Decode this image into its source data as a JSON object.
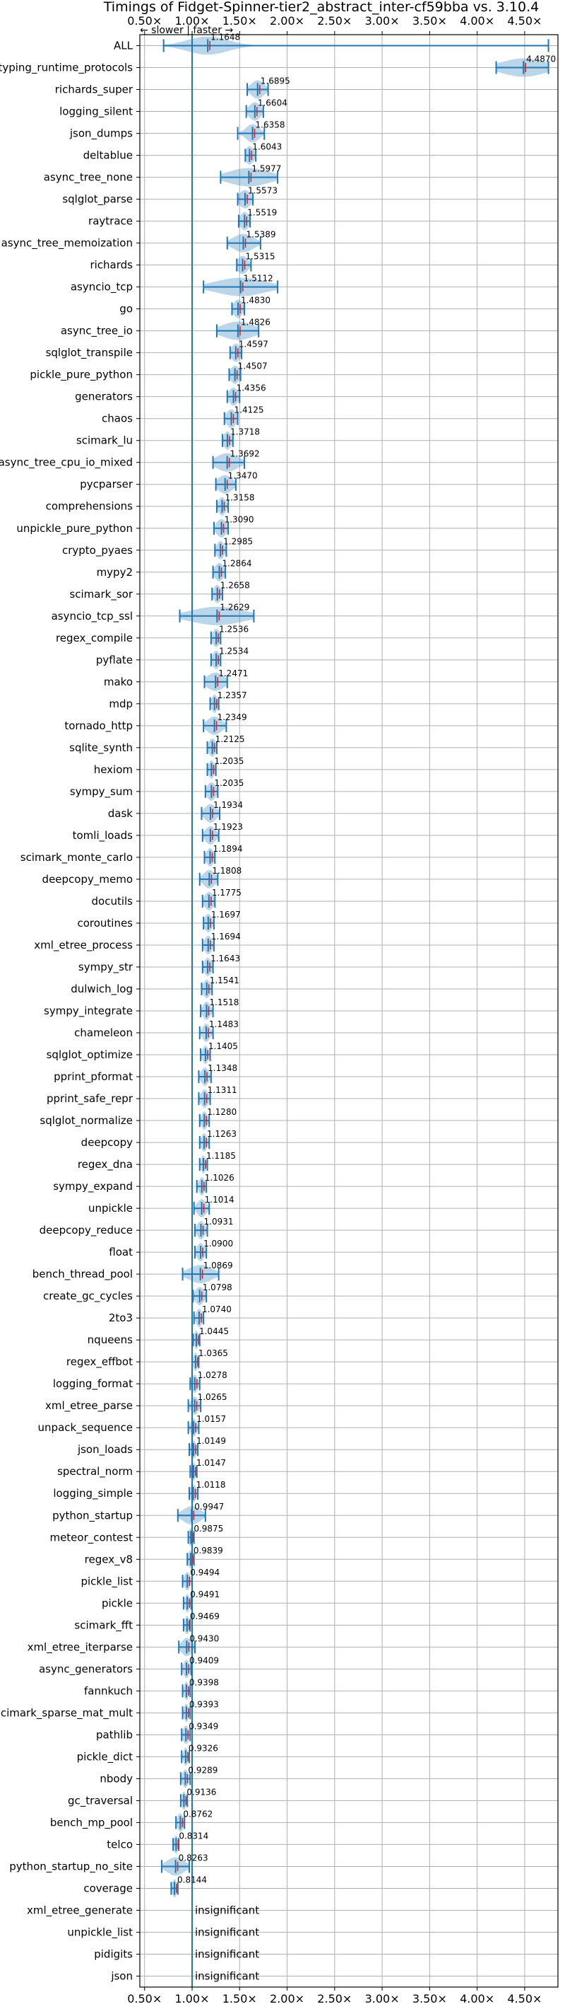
{
  "chart_data": {
    "type": "violin",
    "title": "Timings of Fidget-Spinner-tier2_abstract_inter-cf59bba vs. 3.10.4",
    "subtitle": "← slower | faster →",
    "x_ticks": [
      "0.50×",
      "1.00×",
      "1.50×",
      "2.00×",
      "2.50×",
      "3.00×",
      "3.50×",
      "4.00×",
      "4.50×"
    ],
    "x_tick_values": [
      0.5,
      1.0,
      1.5,
      2.0,
      2.5,
      3.0,
      3.5,
      4.0,
      4.5
    ],
    "xlim": [
      0.45,
      4.85
    ],
    "baseline": 1.0,
    "grid": true,
    "insignificant_text": "insignificant",
    "colors": {
      "violin": "#1f77b4",
      "median": "#d62728"
    },
    "benchmarks": [
      {
        "name": "ALL",
        "value": 1.1648,
        "label": "1.1648",
        "lo": 0.7,
        "hi": 4.75,
        "w": 0.28
      },
      {
        "name": "typing_runtime_protocols",
        "value": 4.487,
        "label": "4.4870",
        "lo": 4.2,
        "hi": 4.75,
        "w": 0.3
      },
      {
        "name": "richards_super",
        "value": 1.6895,
        "label": "1.6895",
        "lo": 1.58,
        "hi": 1.8,
        "w": 0.09
      },
      {
        "name": "logging_silent",
        "value": 1.6604,
        "label": "1.6604",
        "lo": 1.57,
        "hi": 1.75,
        "w": 0.08
      },
      {
        "name": "json_dumps",
        "value": 1.6358,
        "label": "1.6358",
        "lo": 1.48,
        "hi": 1.76,
        "w": 0.09
      },
      {
        "name": "deltablue",
        "value": 1.6043,
        "label": "1.6043",
        "lo": 1.56,
        "hi": 1.67,
        "w": 0.06
      },
      {
        "name": "async_tree_none",
        "value": 1.5977,
        "label": "1.5977",
        "lo": 1.3,
        "hi": 1.9,
        "w": 0.28
      },
      {
        "name": "sqlglot_parse",
        "value": 1.5573,
        "label": "1.5573",
        "lo": 1.48,
        "hi": 1.64,
        "w": 0.08
      },
      {
        "name": "raytrace",
        "value": 1.5519,
        "label": "1.5519",
        "lo": 1.49,
        "hi": 1.61,
        "w": 0.06
      },
      {
        "name": "async_tree_memoization",
        "value": 1.5389,
        "label": "1.5389",
        "lo": 1.37,
        "hi": 1.72,
        "w": 0.14
      },
      {
        "name": "richards",
        "value": 1.5315,
        "label": "1.5315",
        "lo": 1.47,
        "hi": 1.62,
        "w": 0.07
      },
      {
        "name": "asyncio_tcp",
        "value": 1.5112,
        "label": "1.5112",
        "lo": 1.12,
        "hi": 1.9,
        "w": 0.34
      },
      {
        "name": "go",
        "value": 1.483,
        "label": "1.4830",
        "lo": 1.42,
        "hi": 1.55,
        "w": 0.06
      },
      {
        "name": "async_tree_io",
        "value": 1.4826,
        "label": "1.4826",
        "lo": 1.26,
        "hi": 1.7,
        "w": 0.22
      },
      {
        "name": "sqlglot_transpile",
        "value": 1.4597,
        "label": "1.4597",
        "lo": 1.4,
        "hi": 1.52,
        "w": 0.06
      },
      {
        "name": "pickle_pure_python",
        "value": 1.4507,
        "label": "1.4507",
        "lo": 1.39,
        "hi": 1.51,
        "w": 0.06
      },
      {
        "name": "generators",
        "value": 1.4356,
        "label": "1.4356",
        "lo": 1.37,
        "hi": 1.5,
        "w": 0.06
      },
      {
        "name": "chaos",
        "value": 1.4125,
        "label": "1.4125",
        "lo": 1.34,
        "hi": 1.48,
        "w": 0.07
      },
      {
        "name": "scimark_lu",
        "value": 1.3718,
        "label": "1.3718",
        "lo": 1.32,
        "hi": 1.43,
        "w": 0.05
      },
      {
        "name": "async_tree_cpu_io_mixed",
        "value": 1.3692,
        "label": "1.3692",
        "lo": 1.22,
        "hi": 1.55,
        "w": 0.15
      },
      {
        "name": "pycparser",
        "value": 1.347,
        "label": "1.3470",
        "lo": 1.25,
        "hi": 1.46,
        "w": 0.1
      },
      {
        "name": "comprehensions",
        "value": 1.3158,
        "label": "1.3158",
        "lo": 1.26,
        "hi": 1.38,
        "w": 0.05
      },
      {
        "name": "unpickle_pure_python",
        "value": 1.309,
        "label": "1.3090",
        "lo": 1.23,
        "hi": 1.38,
        "w": 0.07
      },
      {
        "name": "crypto_pyaes",
        "value": 1.2985,
        "label": "1.2985",
        "lo": 1.24,
        "hi": 1.36,
        "w": 0.05
      },
      {
        "name": "mypy2",
        "value": 1.2864,
        "label": "1.2864",
        "lo": 1.22,
        "hi": 1.35,
        "w": 0.06
      },
      {
        "name": "scimark_sor",
        "value": 1.2658,
        "label": "1.2658",
        "lo": 1.21,
        "hi": 1.32,
        "w": 0.05
      },
      {
        "name": "asyncio_tcp_ssl",
        "value": 1.2629,
        "label": "1.2629",
        "lo": 0.87,
        "hi": 1.65,
        "w": 0.36
      },
      {
        "name": "regex_compile",
        "value": 1.2536,
        "label": "1.2536",
        "lo": 1.2,
        "hi": 1.3,
        "w": 0.05
      },
      {
        "name": "pyflate",
        "value": 1.2534,
        "label": "1.2534",
        "lo": 1.2,
        "hi": 1.3,
        "w": 0.05
      },
      {
        "name": "mako",
        "value": 1.2471,
        "label": "1.2471",
        "lo": 1.13,
        "hi": 1.37,
        "w": 0.12
      },
      {
        "name": "mdp",
        "value": 1.2357,
        "label": "1.2357",
        "lo": 1.19,
        "hi": 1.28,
        "w": 0.04
      },
      {
        "name": "tornado_http",
        "value": 1.2349,
        "label": "1.2349",
        "lo": 1.12,
        "hi": 1.36,
        "w": 0.1
      },
      {
        "name": "sqlite_synth",
        "value": 1.2125,
        "label": "1.2125",
        "lo": 1.16,
        "hi": 1.26,
        "w": 0.05
      },
      {
        "name": "hexiom",
        "value": 1.2035,
        "label": "1.2035",
        "lo": 1.16,
        "hi": 1.25,
        "w": 0.04
      },
      {
        "name": "sympy_sum",
        "value": 1.2035,
        "label": "1.2035",
        "lo": 1.14,
        "hi": 1.27,
        "w": 0.06
      },
      {
        "name": "dask",
        "value": 1.1934,
        "label": "1.1934",
        "lo": 1.1,
        "hi": 1.29,
        "w": 0.08
      },
      {
        "name": "tomli_loads",
        "value": 1.1923,
        "label": "1.1923",
        "lo": 1.11,
        "hi": 1.28,
        "w": 0.07
      },
      {
        "name": "scimark_monte_carlo",
        "value": 1.1894,
        "label": "1.1894",
        "lo": 1.13,
        "hi": 1.24,
        "w": 0.05
      },
      {
        "name": "deepcopy_memo",
        "value": 1.1808,
        "label": "1.1808",
        "lo": 1.08,
        "hi": 1.27,
        "w": 0.08
      },
      {
        "name": "docutils",
        "value": 1.1775,
        "label": "1.1775",
        "lo": 1.11,
        "hi": 1.24,
        "w": 0.06
      },
      {
        "name": "coroutines",
        "value": 1.1697,
        "label": "1.1697",
        "lo": 1.12,
        "hi": 1.23,
        "w": 0.05
      },
      {
        "name": "xml_etree_process",
        "value": 1.1694,
        "label": "1.1694",
        "lo": 1.11,
        "hi": 1.23,
        "w": 0.05
      },
      {
        "name": "sympy_str",
        "value": 1.1643,
        "label": "1.1643",
        "lo": 1.11,
        "hi": 1.22,
        "w": 0.05
      },
      {
        "name": "dulwich_log",
        "value": 1.1541,
        "label": "1.1541",
        "lo": 1.1,
        "hi": 1.21,
        "w": 0.05
      },
      {
        "name": "sympy_integrate",
        "value": 1.1518,
        "label": "1.1518",
        "lo": 1.09,
        "hi": 1.22,
        "w": 0.05
      },
      {
        "name": "chameleon",
        "value": 1.1483,
        "label": "1.1483",
        "lo": 1.08,
        "hi": 1.22,
        "w": 0.05
      },
      {
        "name": "sqlglot_optimize",
        "value": 1.1405,
        "label": "1.1405",
        "lo": 1.09,
        "hi": 1.19,
        "w": 0.04
      },
      {
        "name": "pprint_pformat",
        "value": 1.1348,
        "label": "1.1348",
        "lo": 1.07,
        "hi": 1.2,
        "w": 0.05
      },
      {
        "name": "pprint_safe_repr",
        "value": 1.1311,
        "label": "1.1311",
        "lo": 1.07,
        "hi": 1.19,
        "w": 0.05
      },
      {
        "name": "sqlglot_normalize",
        "value": 1.128,
        "label": "1.1280",
        "lo": 1.08,
        "hi": 1.18,
        "w": 0.04
      },
      {
        "name": "deepcopy",
        "value": 1.1263,
        "label": "1.1263",
        "lo": 1.08,
        "hi": 1.18,
        "w": 0.04
      },
      {
        "name": "regex_dna",
        "value": 1.1185,
        "label": "1.1185",
        "lo": 1.08,
        "hi": 1.16,
        "w": 0.03
      },
      {
        "name": "sympy_expand",
        "value": 1.1026,
        "label": "1.1026",
        "lo": 1.05,
        "hi": 1.15,
        "w": 0.04
      },
      {
        "name": "unpickle",
        "value": 1.1014,
        "label": "1.1014",
        "lo": 1.02,
        "hi": 1.18,
        "w": 0.06
      },
      {
        "name": "deepcopy_reduce",
        "value": 1.0931,
        "label": "1.0931",
        "lo": 1.03,
        "hi": 1.16,
        "w": 0.05
      },
      {
        "name": "float",
        "value": 1.09,
        "label": "1.0900",
        "lo": 1.03,
        "hi": 1.15,
        "w": 0.05
      },
      {
        "name": "bench_thread_pool",
        "value": 1.0869,
        "label": "1.0869",
        "lo": 0.9,
        "hi": 1.28,
        "w": 0.16
      },
      {
        "name": "create_gc_cycles",
        "value": 1.0798,
        "label": "1.0798",
        "lo": 1.01,
        "hi": 1.15,
        "w": 0.06
      },
      {
        "name": "2to3",
        "value": 1.074,
        "label": "1.0740",
        "lo": 1.02,
        "hi": 1.12,
        "w": 0.04
      },
      {
        "name": "nqueens",
        "value": 1.0445,
        "label": "1.0445",
        "lo": 1.01,
        "hi": 1.08,
        "w": 0.03
      },
      {
        "name": "regex_effbot",
        "value": 1.0365,
        "label": "1.0365",
        "lo": 1.0,
        "hi": 1.07,
        "w": 0.03
      },
      {
        "name": "logging_format",
        "value": 1.0278,
        "label": "1.0278",
        "lo": 0.98,
        "hi": 1.08,
        "w": 0.04
      },
      {
        "name": "xml_etree_parse",
        "value": 1.0265,
        "label": "1.0265",
        "lo": 0.96,
        "hi": 1.09,
        "w": 0.05
      },
      {
        "name": "unpack_sequence",
        "value": 1.0157,
        "label": "1.0157",
        "lo": 0.96,
        "hi": 1.07,
        "w": 0.04
      },
      {
        "name": "json_loads",
        "value": 1.0149,
        "label": "1.0149",
        "lo": 0.97,
        "hi": 1.06,
        "w": 0.04
      },
      {
        "name": "spectral_norm",
        "value": 1.0147,
        "label": "1.0147",
        "lo": 0.98,
        "hi": 1.05,
        "w": 0.03
      },
      {
        "name": "logging_simple",
        "value": 1.0118,
        "label": "1.0118",
        "lo": 0.97,
        "hi": 1.06,
        "w": 0.04
      },
      {
        "name": "python_startup",
        "value": 0.9947,
        "label": "0.9947",
        "lo": 0.85,
        "hi": 1.14,
        "w": 0.12
      },
      {
        "name": "meteor_contest",
        "value": 0.9875,
        "label": "0.9875",
        "lo": 0.96,
        "hi": 1.02,
        "w": 0.03
      },
      {
        "name": "regex_v8",
        "value": 0.9839,
        "label": "0.9839",
        "lo": 0.95,
        "hi": 1.02,
        "w": 0.03
      },
      {
        "name": "pickle_list",
        "value": 0.9494,
        "label": "0.9494",
        "lo": 0.9,
        "hi": 1.0,
        "w": 0.04
      },
      {
        "name": "pickle",
        "value": 0.9491,
        "label": "0.9491",
        "lo": 0.91,
        "hi": 0.99,
        "w": 0.03
      },
      {
        "name": "scimark_fft",
        "value": 0.9469,
        "label": "0.9469",
        "lo": 0.91,
        "hi": 0.98,
        "w": 0.03
      },
      {
        "name": "xml_etree_iterparse",
        "value": 0.943,
        "label": "0.9430",
        "lo": 0.86,
        "hi": 1.03,
        "w": 0.07
      },
      {
        "name": "async_generators",
        "value": 0.9409,
        "label": "0.9409",
        "lo": 0.89,
        "hi": 0.99,
        "w": 0.04
      },
      {
        "name": "fannkuch",
        "value": 0.9398,
        "label": "0.9398",
        "lo": 0.9,
        "hi": 0.98,
        "w": 0.03
      },
      {
        "name": "scimark_sparse_mat_mult",
        "value": 0.9393,
        "label": "0.9393",
        "lo": 0.9,
        "hi": 0.98,
        "w": 0.03
      },
      {
        "name": "pathlib",
        "value": 0.9349,
        "label": "0.9349",
        "lo": 0.89,
        "hi": 0.98,
        "w": 0.04
      },
      {
        "name": "pickle_dict",
        "value": 0.9326,
        "label": "0.9326",
        "lo": 0.89,
        "hi": 0.97,
        "w": 0.03
      },
      {
        "name": "nbody",
        "value": 0.9289,
        "label": "0.9289",
        "lo": 0.88,
        "hi": 0.98,
        "w": 0.04
      },
      {
        "name": "gc_traversal",
        "value": 0.9136,
        "label": "0.9136",
        "lo": 0.88,
        "hi": 0.95,
        "w": 0.03
      },
      {
        "name": "bench_mp_pool",
        "value": 0.8762,
        "label": "0.8762",
        "lo": 0.83,
        "hi": 0.92,
        "w": 0.04
      },
      {
        "name": "telco",
        "value": 0.8314,
        "label": "0.8314",
        "lo": 0.8,
        "hi": 0.86,
        "w": 0.03
      },
      {
        "name": "python_startup_no_site",
        "value": 0.8263,
        "label": "0.8263",
        "lo": 0.68,
        "hi": 0.97,
        "w": 0.12
      },
      {
        "name": "coverage",
        "value": 0.8144,
        "label": "0.8144",
        "lo": 0.78,
        "hi": 0.85,
        "w": 0.03
      },
      {
        "name": "xml_etree_generate",
        "insignificant": true
      },
      {
        "name": "unpickle_list",
        "insignificant": true
      },
      {
        "name": "pidigits",
        "insignificant": true
      },
      {
        "name": "json",
        "insignificant": true
      }
    ]
  }
}
